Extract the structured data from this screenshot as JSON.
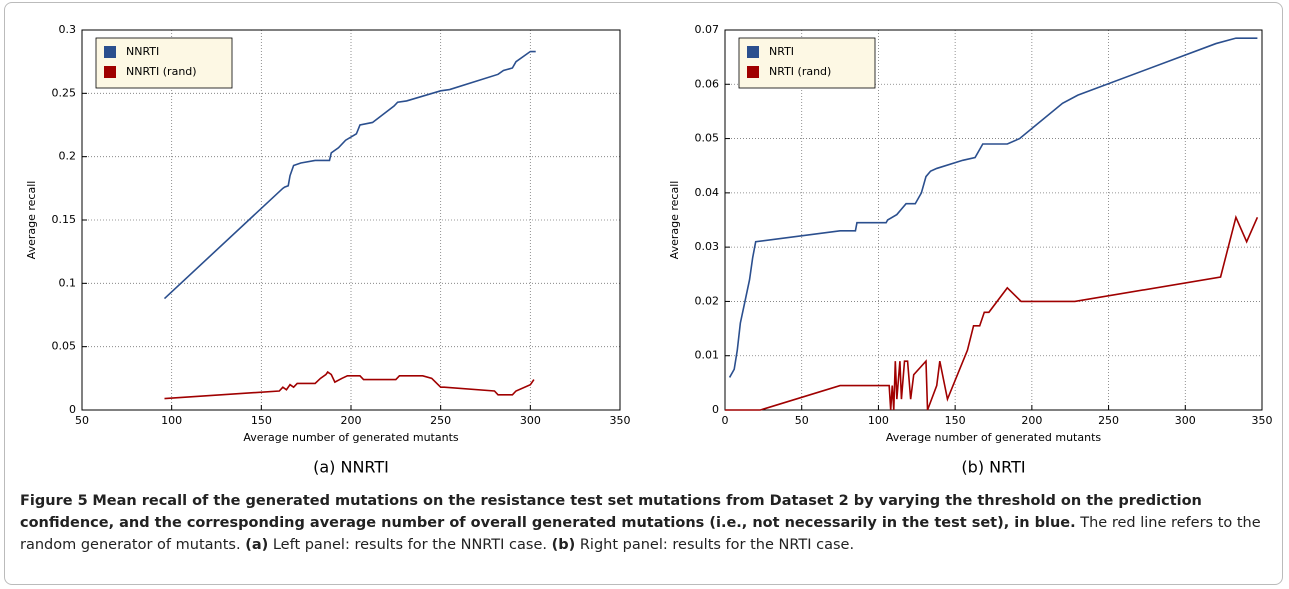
{
  "chart_data": [
    {
      "type": "line",
      "caption": "(a) NNRTI",
      "xlabel": "Average number of generated mutants",
      "ylabel": "Average recall",
      "xlim": [
        50,
        350
      ],
      "xticks": [
        50,
        100,
        150,
        200,
        250,
        300,
        350
      ],
      "ylim": [
        0,
        0.3
      ],
      "yticks": [
        0,
        0.05,
        0.1,
        0.15,
        0.2,
        0.25,
        0.3
      ],
      "grid": true,
      "legend": "upper-left",
      "series": [
        {
          "name": "NNRTI",
          "color": "#2b4f8e",
          "x": [
            96,
            162,
            163,
            165,
            166,
            168,
            172,
            180,
            188,
            189,
            193,
            197,
            203,
            205,
            212,
            224,
            226,
            231,
            250,
            255,
            282,
            285,
            290,
            292,
            300,
            303
          ],
          "values": [
            0.088,
            0.175,
            0.176,
            0.177,
            0.185,
            0.193,
            0.195,
            0.197,
            0.197,
            0.203,
            0.207,
            0.213,
            0.218,
            0.225,
            0.227,
            0.24,
            0.243,
            0.244,
            0.252,
            0.253,
            0.265,
            0.268,
            0.27,
            0.275,
            0.283,
            0.283
          ]
        },
        {
          "name": "NNRTI (rand)",
          "color": "#a00000",
          "x": [
            96,
            160,
            162,
            164,
            166,
            168,
            170,
            180,
            183,
            186,
            187,
            189,
            191,
            195,
            198,
            205,
            207,
            225,
            227,
            240,
            245,
            250,
            252,
            280,
            282,
            290,
            292,
            300,
            302
          ],
          "values": [
            0.009,
            0.015,
            0.018,
            0.016,
            0.02,
            0.018,
            0.021,
            0.021,
            0.025,
            0.028,
            0.03,
            0.028,
            0.022,
            0.025,
            0.027,
            0.027,
            0.024,
            0.024,
            0.027,
            0.027,
            0.025,
            0.018,
            0.018,
            0.015,
            0.012,
            0.012,
            0.015,
            0.02,
            0.024
          ]
        }
      ]
    },
    {
      "type": "line",
      "caption": "(b) NRTI",
      "xlabel": "Average number of generated mutants",
      "ylabel": "Average recall",
      "xlim": [
        0,
        350
      ],
      "xticks": [
        0,
        50,
        100,
        150,
        200,
        250,
        300,
        350
      ],
      "ylim": [
        0,
        0.07
      ],
      "yticks": [
        0,
        0.01,
        0.02,
        0.03,
        0.04,
        0.05,
        0.06,
        0.07
      ],
      "grid": true,
      "legend": "upper-left",
      "series": [
        {
          "name": "NRTI",
          "color": "#2b4f8e",
          "x": [
            3,
            6,
            8,
            10,
            13,
            16,
            18,
            20,
            75,
            85,
            86,
            105,
            106,
            112,
            115,
            118,
            124,
            128,
            131,
            134,
            138,
            155,
            163,
            168,
            184,
            192,
            220,
            230,
            320,
            333,
            347
          ],
          "values": [
            0.006,
            0.0075,
            0.011,
            0.016,
            0.02,
            0.024,
            0.028,
            0.031,
            0.033,
            0.033,
            0.0345,
            0.0345,
            0.035,
            0.036,
            0.037,
            0.038,
            0.038,
            0.04,
            0.043,
            0.044,
            0.0445,
            0.046,
            0.0465,
            0.049,
            0.049,
            0.05,
            0.0565,
            0.058,
            0.0675,
            0.0685,
            0.0685
          ]
        },
        {
          "name": "NRTI (rand)",
          "color": "#a00000",
          "x": [
            0,
            23,
            75,
            107,
            108,
            109,
            110,
            111,
            112,
            114,
            115,
            117,
            119,
            121,
            123,
            131,
            132,
            138,
            140,
            145,
            158,
            162,
            166,
            169,
            172,
            184,
            193,
            228,
            323,
            333,
            340,
            347
          ],
          "values": [
            0,
            0,
            0.0045,
            0.0045,
            0,
            0.0045,
            0,
            0.009,
            0.002,
            0.009,
            0.002,
            0.009,
            0.009,
            0.002,
            0.0065,
            0.009,
            0,
            0.0045,
            0.009,
            0.002,
            0.011,
            0.0155,
            0.0155,
            0.018,
            0.018,
            0.0225,
            0.02,
            0.02,
            0.0245,
            0.0355,
            0.031,
            0.0355
          ]
        }
      ]
    }
  ],
  "caption": {
    "label": "Figure 5",
    "title": "Mean recall of the generated mutations on the resistance test set mutations from Dataset 2 by varying the threshold on the prediction confidence, and the corresponding average number of overall generated mutations (i.e., not necessarily in the test set), in blue.",
    "body": "The red line refers to the random generator of mutants.",
    "a_label": "(a)",
    "a_text": "Left panel: results for the NNRTI case.",
    "b_label": "(b)",
    "b_text": "Right panel: results for the NRTI case."
  }
}
